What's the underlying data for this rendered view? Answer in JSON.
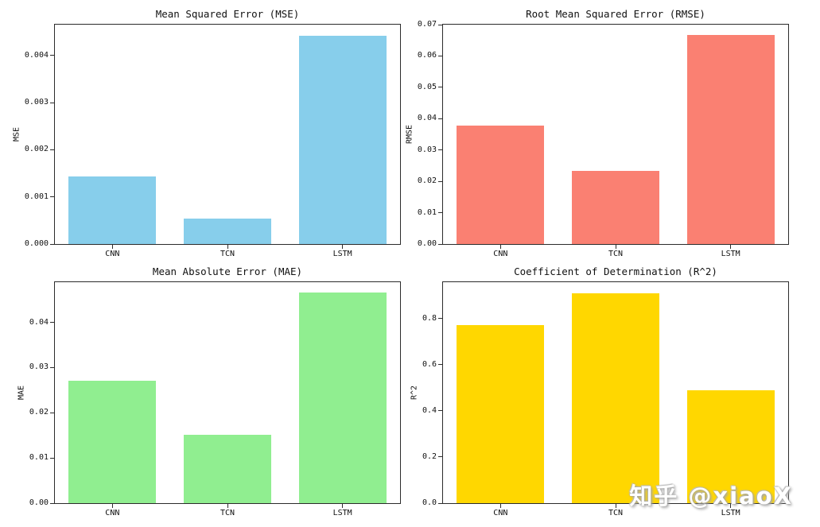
{
  "watermark": {
    "text": "知乎 @xiaoX"
  },
  "chart_data": [
    {
      "type": "bar",
      "title": "Mean Squared Error (MSE)",
      "ylabel": "MSE",
      "xlabel": "",
      "categories": [
        "CNN",
        "TCN",
        "LSTM"
      ],
      "values": [
        0.00143,
        0.00054,
        0.00442
      ],
      "bar_color": "#87CEEB",
      "ylim": [
        0,
        0.004656
      ],
      "grid": false,
      "legend": "none",
      "yticks": [
        {
          "v": 0.0,
          "label": "0.000"
        },
        {
          "v": 0.001,
          "label": "0.001"
        },
        {
          "v": 0.002,
          "label": "0.002"
        },
        {
          "v": 0.003,
          "label": "0.003"
        },
        {
          "v": 0.004,
          "label": "0.004"
        }
      ]
    },
    {
      "type": "bar",
      "title": "Root Mean Squared Error (RMSE)",
      "ylabel": "RMSE",
      "xlabel": "",
      "categories": [
        "CNN",
        "TCN",
        "LSTM"
      ],
      "values": [
        0.0378,
        0.0233,
        0.0667
      ],
      "bar_color": "#FA8072",
      "ylim": [
        0,
        0.07
      ],
      "grid": false,
      "legend": "none",
      "yticks": [
        {
          "v": 0.0,
          "label": "0.00"
        },
        {
          "v": 0.01,
          "label": "0.01"
        },
        {
          "v": 0.02,
          "label": "0.02"
        },
        {
          "v": 0.03,
          "label": "0.03"
        },
        {
          "v": 0.04,
          "label": "0.04"
        },
        {
          "v": 0.05,
          "label": "0.05"
        },
        {
          "v": 0.06,
          "label": "0.06"
        },
        {
          "v": 0.07,
          "label": "0.07"
        }
      ]
    },
    {
      "type": "bar",
      "title": "Mean Absolute Error (MAE)",
      "ylabel": "MAE",
      "xlabel": "",
      "categories": [
        "CNN",
        "TCN",
        "LSTM"
      ],
      "values": [
        0.0271,
        0.0151,
        0.0467
      ],
      "bar_color": "#90EE90",
      "ylim": [
        0,
        0.0489
      ],
      "grid": false,
      "legend": "none",
      "yticks": [
        {
          "v": 0.0,
          "label": "0.00"
        },
        {
          "v": 0.01,
          "label": "0.01"
        },
        {
          "v": 0.02,
          "label": "0.02"
        },
        {
          "v": 0.03,
          "label": "0.03"
        },
        {
          "v": 0.04,
          "label": "0.04"
        }
      ]
    },
    {
      "type": "bar",
      "title": "Coefficient of Determination (R^2)",
      "ylabel": "R^2",
      "xlabel": "",
      "categories": [
        "CNN",
        "TCN",
        "LSTM"
      ],
      "values": [
        0.773,
        0.911,
        0.491
      ],
      "bar_color": "#FFD700",
      "ylim": [
        0,
        0.958
      ],
      "grid": false,
      "legend": "none",
      "yticks": [
        {
          "v": 0.0,
          "label": "0.0"
        },
        {
          "v": 0.2,
          "label": "0.2"
        },
        {
          "v": 0.4,
          "label": "0.4"
        },
        {
          "v": 0.6,
          "label": "0.6"
        },
        {
          "v": 0.8,
          "label": "0.8"
        }
      ]
    }
  ]
}
